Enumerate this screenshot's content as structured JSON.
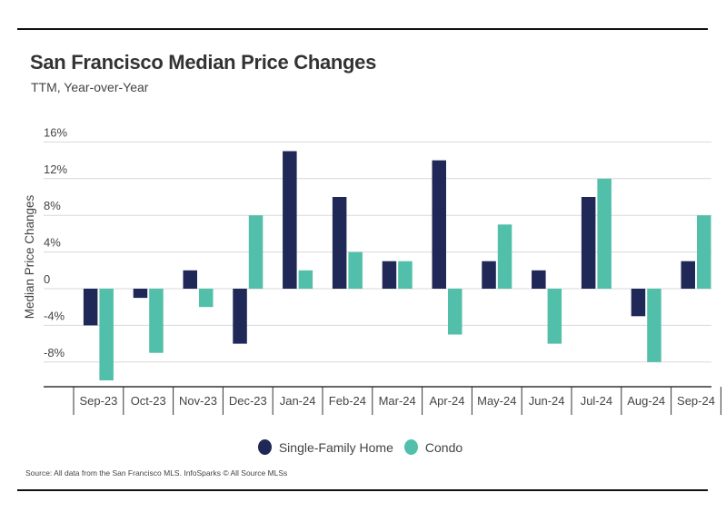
{
  "chart_data": {
    "type": "bar",
    "title": "San Francisco Median Price Changes",
    "subtitle": "TTM, Year-over-Year",
    "xlabel": "",
    "ylabel": "Median Price Changes",
    "ylim": [
      -10,
      16
    ],
    "yticks": [
      -8,
      -4,
      0,
      4,
      8,
      12,
      16
    ],
    "ytick_labels": [
      "-8%",
      "-4%",
      "0",
      "4%",
      "8%",
      "12%",
      "16%"
    ],
    "grid": true,
    "legend_position": "bottom-center",
    "categories": [
      "Sep-23",
      "Oct-23",
      "Nov-23",
      "Dec-23",
      "Jan-24",
      "Feb-24",
      "Mar-24",
      "Apr-24",
      "May-24",
      "Jun-24",
      "Jul-24",
      "Aug-24",
      "Sep-24"
    ],
    "series": [
      {
        "name": "Single-Family Home",
        "color": "#1f2856",
        "values": [
          -4,
          -1,
          2,
          -6,
          15,
          10,
          3,
          14,
          3,
          2,
          10,
          -3,
          3
        ]
      },
      {
        "name": "Condo",
        "color": "#52bfaa",
        "values": [
          -10,
          -7,
          -2,
          8,
          2,
          4,
          3,
          -5,
          7,
          -6,
          12,
          -8,
          8
        ]
      }
    ],
    "source": "Source:  All data from the San Francisco MLS. InfoSparks © All Source MLSs"
  }
}
